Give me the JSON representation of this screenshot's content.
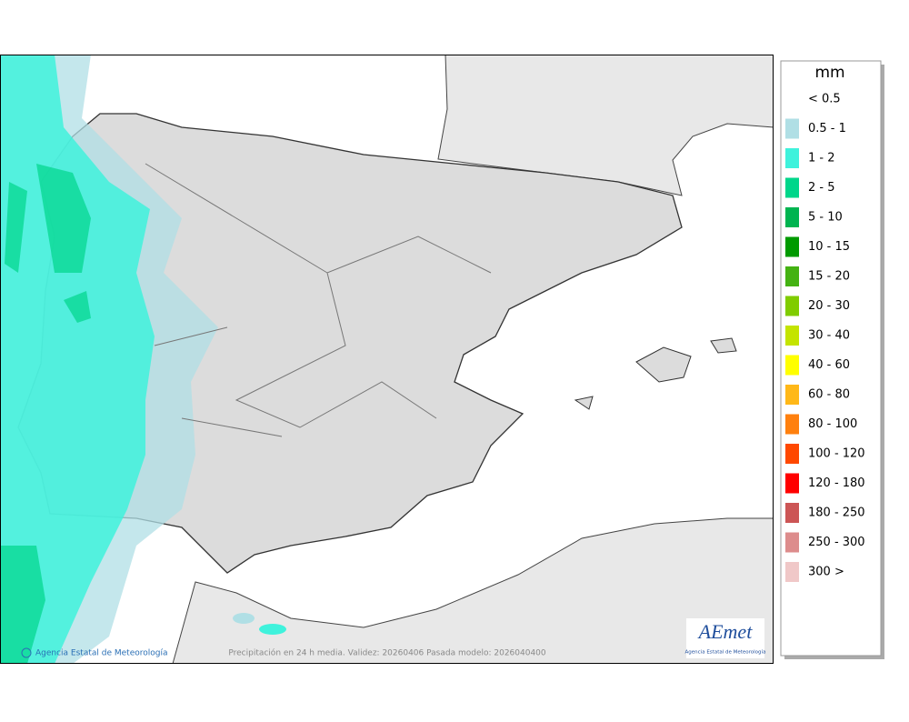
{
  "legend": {
    "title": "mm",
    "items": [
      {
        "label": "< 0.5",
        "color": "#ffffff"
      },
      {
        "label": "0.5 - 1",
        "color": "#b0dfe5"
      },
      {
        "label": "1 - 2",
        "color": "#3ff2dc"
      },
      {
        "label": "2 - 5",
        "color": "#00d68a"
      },
      {
        "label": "5 - 10",
        "color": "#00b450"
      },
      {
        "label": "10 - 15",
        "color": "#009a00"
      },
      {
        "label": "15 - 20",
        "color": "#44b212"
      },
      {
        "label": "20 - 30",
        "color": "#80cc00"
      },
      {
        "label": "30 - 40",
        "color": "#c4e400"
      },
      {
        "label": "40 - 60",
        "color": "#ffff00"
      },
      {
        "label": "60 - 80",
        "color": "#ffb818"
      },
      {
        "label": "80 - 100",
        "color": "#ff800e"
      },
      {
        "label": "100 - 120",
        "color": "#ff4800"
      },
      {
        "label": "120 - 180",
        "color": "#ff0000"
      },
      {
        "label": "180 - 250",
        "color": "#cc5555"
      },
      {
        "label": "250 - 300",
        "color": "#dd8c8c"
      },
      {
        "label": "300 >",
        "color": "#f0c8c8"
      }
    ]
  },
  "footer": {
    "credit": "Agencia Estatal de Meteorología",
    "caption": "Precipitación en 24 h media. Validez: 20260406 Pasada modelo: 2026040400"
  },
  "logo": {
    "name": "AEmet",
    "subtitle": "Agencia Estatal de Meteorología"
  }
}
